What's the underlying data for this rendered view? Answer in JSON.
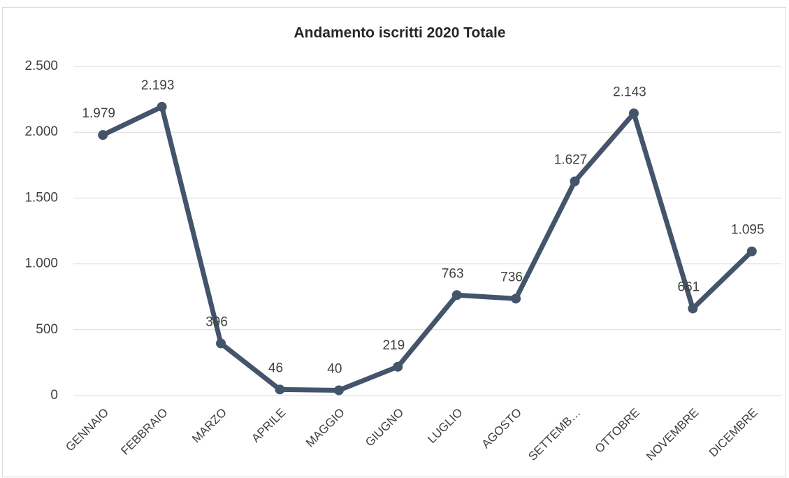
{
  "chart_data": {
    "type": "line",
    "title": "Andamento iscritti 2020 Totale",
    "categories": [
      "GENNAIO",
      "FEBBRAIO",
      "MARZO",
      "APRILE",
      "MAGGIO",
      "GIUGNO",
      "LUGLIO",
      "AGOSTO",
      "SETTEMB…",
      "OTTOBRE",
      "NOVEMBRE",
      "DICEMBRE"
    ],
    "series": [
      {
        "name": "Totale",
        "color": "#44546a",
        "values": [
          1979,
          2193,
          396,
          46,
          40,
          219,
          763,
          736,
          1627,
          2143,
          661,
          1095
        ],
        "value_labels": [
          "1.979",
          "2.193",
          "396",
          "46",
          "40",
          "219",
          "763",
          "736",
          "1.627",
          "2.143",
          "661",
          "1.095"
        ]
      }
    ],
    "ylim": [
      0,
      2500
    ],
    "yticks": [
      0,
      500,
      {
        "value": 1000,
        "label": "1.000"
      },
      {
        "value": 1500,
        "label": "1.500"
      },
      {
        "value": 2000,
        "label": "2.000"
      },
      {
        "value": 2500,
        "label": "2.500"
      }
    ],
    "grid": true
  }
}
